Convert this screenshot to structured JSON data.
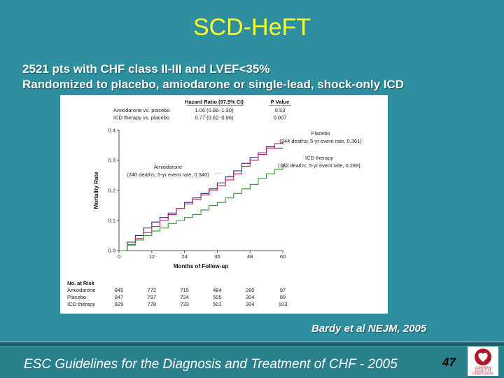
{
  "slide": {
    "title": "SCD-HeFT",
    "bullets": [
      "2521 pts with CHF class II-III and  LVEF<35%",
      "Randomized to placebo, amiodarone or single-lead, shock-only ICD"
    ],
    "citation": "Bardy et al NEJM, 2005",
    "footer": "ESC Guidelines for the Diagnosis and Treatment of CHF - 2005",
    "page_number": "47",
    "logo_text": "EUROPEAN\nSOCIETY OF\nCARDIOLOGY®",
    "logo_icon": "heart-icon"
  },
  "chart_data": {
    "type": "line",
    "xlabel": "Months of Follow-up",
    "ylabel": "Mortality Rate",
    "xlim": [
      0,
      60
    ],
    "ylim": [
      0,
      0.4
    ],
    "xticks": [
      0,
      12,
      24,
      36,
      48,
      60
    ],
    "yticks": [
      0.0,
      0.1,
      0.2,
      0.3,
      0.4
    ],
    "x_tick_labels": [
      "0",
      "12",
      "24",
      "36",
      "48",
      "60"
    ],
    "y_tick_labels": [
      "0.0",
      "0.1",
      "0.2",
      "0.3",
      "0.4"
    ],
    "grid": false,
    "hr_table": {
      "headers": [
        "Hazard Ratio (97.5% CI)",
        "P Value"
      ],
      "rows": [
        {
          "label": "Amiodarone vs. placebo",
          "hr": "1.06 (0.86–1.30)",
          "p": "0.53"
        },
        {
          "label": "ICD therapy vs. placebo",
          "hr": "0.77 (0.62–0.96)",
          "p": "0.007"
        }
      ]
    },
    "series": [
      {
        "name": "Amiodarone",
        "color": "#2a2a8c",
        "x": [
          0,
          3,
          6,
          9,
          12,
          15,
          18,
          21,
          24,
          27,
          30,
          33,
          36,
          39,
          42,
          45,
          48,
          51,
          54,
          57,
          60
        ],
        "y": [
          0,
          0.028,
          0.05,
          0.075,
          0.095,
          0.11,
          0.125,
          0.14,
          0.16,
          0.175,
          0.19,
          0.205,
          0.225,
          0.245,
          0.265,
          0.29,
          0.31,
          0.325,
          0.345,
          0.34,
          0.34
        ],
        "annotation": [
          "Amiodarone",
          "(240 deaths; 5-yr event rate, 0.340)"
        ]
      },
      {
        "name": "Placebo",
        "color": "#c0204a",
        "x": [
          0,
          3,
          6,
          9,
          12,
          15,
          18,
          21,
          24,
          27,
          30,
          33,
          36,
          39,
          42,
          45,
          48,
          51,
          54,
          57,
          60
        ],
        "y": [
          0,
          0.02,
          0.04,
          0.06,
          0.08,
          0.1,
          0.12,
          0.14,
          0.155,
          0.17,
          0.185,
          0.2,
          0.215,
          0.235,
          0.255,
          0.28,
          0.3,
          0.32,
          0.34,
          0.355,
          0.361
        ],
        "annotation": [
          "Placebo",
          "(244 deaths; 5-yr event rate, 0.361)"
        ]
      },
      {
        "name": "ICD therapy",
        "color": "#2e9e2e",
        "x": [
          0,
          3,
          6,
          9,
          12,
          15,
          18,
          21,
          24,
          27,
          30,
          33,
          36,
          39,
          42,
          45,
          48,
          51,
          54,
          57,
          60
        ],
        "y": [
          0,
          0.018,
          0.035,
          0.05,
          0.065,
          0.075,
          0.09,
          0.1,
          0.11,
          0.12,
          0.135,
          0.15,
          0.16,
          0.175,
          0.19,
          0.205,
          0.22,
          0.24,
          0.255,
          0.27,
          0.289
        ],
        "annotation": [
          "ICD therapy",
          "(182 deaths; 5-yr event rate, 0.289)"
        ]
      }
    ],
    "at_risk": {
      "title": "No. at Risk",
      "rows": [
        {
          "label": "Amiodarone",
          "values": [
            "845",
            "772",
            "715",
            "484",
            "280",
            "97"
          ]
        },
        {
          "label": "Placebo",
          "values": [
            "847",
            "797",
            "724",
            "505",
            "304",
            "89"
          ]
        },
        {
          "label": "ICD therapy",
          "values": [
            "829",
            "778",
            "733",
            "501",
            "304",
            "103"
          ]
        }
      ]
    }
  }
}
